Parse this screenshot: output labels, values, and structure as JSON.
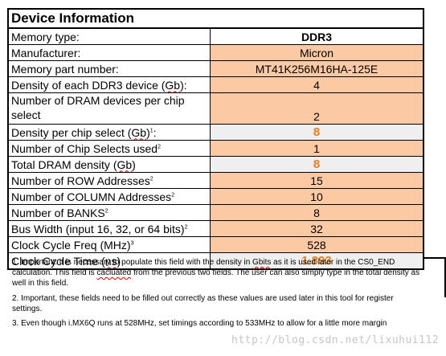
{
  "title": "Device Information",
  "rows": [
    {
      "label": "Memory type:",
      "value": "DDR3",
      "style": "bold"
    },
    {
      "label": "Manufacturer:",
      "value": "Micron",
      "style": "input"
    },
    {
      "label": "Memory part number:",
      "value": "MT41K256M16HA-125E",
      "style": "input"
    },
    {
      "label_pre": "Density of each DDR3 device (",
      "label_wavy": "Gb",
      "label_post": "):",
      "value": "4",
      "style": "input"
    },
    {
      "label": "Number of DRAM devices per chip select",
      "value": "2",
      "style": "input"
    },
    {
      "label_pre": "Density per chip select (",
      "label_wavy": "Gb",
      "label_post": ")",
      "sup": "1",
      "label_end": ":",
      "value": "8",
      "style": "calc"
    },
    {
      "label": "Number of Chip Selects used",
      "sup": "2",
      "value": "1",
      "style": "input"
    },
    {
      "label_pre": "Total DRAM density (",
      "label_wavy": "Gb",
      "label_post": ")",
      "value": "8",
      "style": "calc"
    },
    {
      "label": "Number of ROW Addresses",
      "sup": "2",
      "value": "15",
      "style": "input"
    },
    {
      "label": "Number of COLUMN Addresses",
      "sup": "2",
      "value": "10",
      "style": "input"
    },
    {
      "label": "Number of BANKS",
      "sup": "2",
      "value": "8",
      "style": "input"
    },
    {
      "label": "Bus Width (input 16, 32, or 64 bits)",
      "sup": "2",
      "value": "32",
      "style": "input"
    },
    {
      "label": "Clock Cycle Freq (MHz)",
      "sup": "3",
      "value": "528",
      "style": "input"
    },
    {
      "label_pre": "Clock Cycle Time (",
      "label_wavy": "ns",
      "label_post": ")",
      "value": "1.893",
      "style": "calc"
    }
  ],
  "notes": {
    "n1_a": "1. Important: it is necessary to populate this field with the density in ",
    "n1_w1": "Gbits",
    "n1_b": " as it is used later in the CS0_END calculation. This field is ",
    "n1_w2": "cacluated",
    "n1_c": " from the previous two fields. The user can also simply type in the total density as well in this field.",
    "n2": "2. Important, these fields need to be filled out correctly as these values are used later in this tool for register settings.",
    "n3": "3. Even though i.MX6Q runs at 528MHz, set timings according to 533MHz to allow for a little more margin"
  },
  "watermark": "http://blog.csdn.net/lixuhui112",
  "colors": {
    "input_fill": "#fbc9a3",
    "calc_fill": "#efefef",
    "calc_text": "#e87e1e"
  }
}
